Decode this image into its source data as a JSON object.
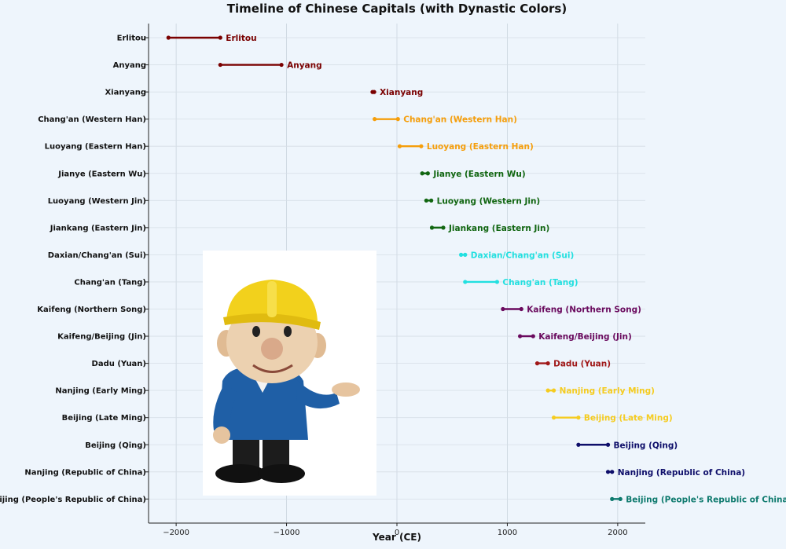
{
  "chart_data": {
    "type": "timeline",
    "title": "Timeline of Chinese Capitals (with Dynastic Colors)",
    "xlabel": "Year (CE)",
    "ylabel": "",
    "xlim": [
      -2250,
      2250
    ],
    "xticks": [
      -2000,
      -1000,
      0,
      1000,
      2000
    ],
    "xtick_labels": [
      "−2000",
      "−1000",
      "0",
      "1000",
      "2000"
    ],
    "grid": true,
    "colors": {
      "xia_shang_qin": "#7a0000",
      "han": "#f59e0b",
      "wu_jin": "#116611",
      "sui_tang": "#22e0e0",
      "song_jin": "#6a0a5e",
      "yuan": "#a01818",
      "ming": "#f5cc20",
      "qing_roc": "#0e0e6a",
      "prc": "#0e7a6e"
    },
    "series": [
      {
        "label": "Erlitou",
        "start": -2070,
        "end": -1600,
        "color": "#7a0000"
      },
      {
        "label": "Anyang",
        "start": -1600,
        "end": -1046,
        "color": "#7a0000"
      },
      {
        "label": "Xianyang",
        "start": -221,
        "end": -206,
        "color": "#7a0000"
      },
      {
        "label": "Chang'an (Western Han)",
        "start": -202,
        "end": 9,
        "color": "#f59e0b"
      },
      {
        "label": "Luoyang (Eastern Han)",
        "start": 25,
        "end": 220,
        "color": "#f59e0b"
      },
      {
        "label": "Jianye (Eastern Wu)",
        "start": 229,
        "end": 280,
        "color": "#116611"
      },
      {
        "label": "Luoyang (Western Jin)",
        "start": 266,
        "end": 311,
        "color": "#116611"
      },
      {
        "label": "Jiankang (Eastern Jin)",
        "start": 317,
        "end": 420,
        "color": "#116611"
      },
      {
        "label": "Daxian/Chang'an (Sui)",
        "start": 581,
        "end": 618,
        "color": "#22e0e0"
      },
      {
        "label": "Chang'an (Tang)",
        "start": 618,
        "end": 907,
        "color": "#22e0e0"
      },
      {
        "label": "Kaifeng (Northern Song)",
        "start": 960,
        "end": 1127,
        "color": "#6a0a5e"
      },
      {
        "label": "Kaifeng/Beijing (Jin)",
        "start": 1115,
        "end": 1234,
        "color": "#6a0a5e"
      },
      {
        "label": "Dadu (Yuan)",
        "start": 1271,
        "end": 1368,
        "color": "#a01818"
      },
      {
        "label": "Nanjing (Early Ming)",
        "start": 1368,
        "end": 1421,
        "color": "#f5cc20"
      },
      {
        "label": "Beijing (Late Ming)",
        "start": 1421,
        "end": 1644,
        "color": "#f5cc20"
      },
      {
        "label": "Beijing (Qing)",
        "start": 1644,
        "end": 1912,
        "color": "#0e0e6a"
      },
      {
        "label": "Nanjing (Republic of China)",
        "start": 1912,
        "end": 1949,
        "color": "#0e0e6a"
      },
      {
        "label": "Beijing (People's Republic of China)",
        "start": 1949,
        "end": 2024,
        "color": "#0e7a6e"
      }
    ]
  },
  "illustration": {
    "subject": "cartoon-worker-with-yellow-hard-hat",
    "helmet_color": "#f2d11c",
    "shirt_color": "#1f5fa6",
    "pants_color": "#1a1a1a"
  }
}
